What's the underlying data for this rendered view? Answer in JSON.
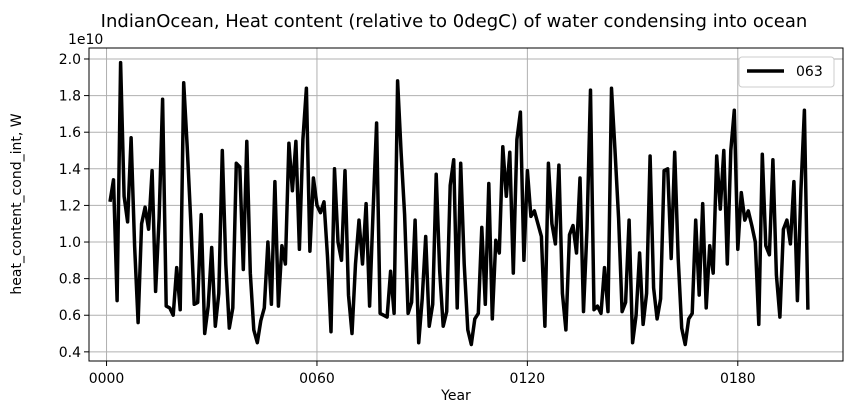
{
  "chart_data": {
    "type": "line",
    "title": "IndianOcean, Heat content (relative to 0degC) of water condensing into ocean",
    "xlabel": "Year",
    "ylabel": "heat_content_cond_int, W",
    "y_offset_label": "1e10",
    "y_scale": 10000000000,
    "xlim": [
      -5,
      210
    ],
    "ylim": [
      0.35,
      2.06
    ],
    "xticks": [
      0,
      60,
      120,
      180
    ],
    "xtick_labels": [
      "0000",
      "0060",
      "0120",
      "0180"
    ],
    "yticks": [
      0.4,
      0.6,
      0.8,
      1.0,
      1.2,
      1.4,
      1.6,
      1.8,
      2.0
    ],
    "ytick_labels": [
      "0.4",
      "0.6",
      "0.8",
      "1.0",
      "1.2",
      "1.4",
      "1.6",
      "1.8",
      "2.0"
    ],
    "grid": true,
    "legend_position": "top-right",
    "series": [
      {
        "name": "063",
        "color": "#000000",
        "x": [
          1,
          2,
          3,
          4,
          5,
          6,
          7,
          8,
          9,
          10,
          11,
          12,
          13,
          14,
          15,
          16,
          17,
          18,
          19,
          20,
          21,
          22,
          23,
          24,
          25,
          26,
          27,
          28,
          29,
          30,
          31,
          32,
          33,
          34,
          35,
          36,
          37,
          38,
          39,
          40,
          41,
          42,
          43,
          44,
          45,
          46,
          47,
          48,
          49,
          50,
          51,
          52,
          53,
          54,
          55,
          56,
          57,
          58,
          59,
          60,
          61,
          62,
          63,
          64,
          65,
          66,
          67,
          68,
          69,
          70,
          71,
          72,
          73,
          74,
          75,
          76,
          77,
          78,
          79,
          80,
          81,
          82,
          83,
          84,
          85,
          86,
          87,
          88,
          89,
          90,
          91,
          92,
          93,
          94,
          95,
          96,
          97,
          98,
          99,
          100,
          101,
          102,
          103,
          104,
          105,
          106,
          107,
          108,
          109,
          110,
          111,
          112,
          113,
          114,
          115,
          116,
          117,
          118,
          119,
          120,
          121,
          122,
          123,
          124,
          125,
          126,
          127,
          128,
          129,
          130,
          131,
          132,
          133,
          134,
          135,
          136,
          137,
          138,
          139,
          140,
          141,
          142,
          143,
          144,
          145,
          146,
          147,
          148,
          149,
          150,
          151,
          152,
          153,
          154,
          155,
          156,
          157,
          158,
          159,
          160,
          161,
          162,
          163,
          164,
          165,
          166,
          167,
          168,
          169,
          170,
          171,
          172,
          173,
          174,
          175,
          176,
          177,
          178,
          179,
          180,
          181,
          182,
          183,
          184,
          185,
          186,
          187,
          188,
          189,
          190,
          191,
          192,
          193,
          194,
          195,
          196,
          197,
          198,
          199,
          200
        ],
        "values": [
          1.22,
          1.34,
          0.68,
          1.98,
          1.25,
          1.11,
          1.57,
          0.98,
          0.56,
          1.1,
          1.19,
          1.07,
          1.39,
          0.73,
          1.13,
          1.78,
          0.65,
          0.64,
          0.6,
          0.86,
          0.63,
          1.87,
          1.52,
          1.12,
          0.66,
          0.67,
          1.15,
          0.5,
          0.65,
          0.97,
          0.54,
          0.72,
          1.5,
          0.88,
          0.53,
          0.64,
          1.43,
          1.41,
          0.85,
          1.55,
          0.83,
          0.52,
          0.45,
          0.57,
          0.64,
          1.0,
          0.66,
          1.33,
          0.65,
          0.98,
          0.88,
          1.54,
          1.28,
          1.55,
          0.96,
          1.56,
          1.84,
          0.95,
          1.35,
          1.2,
          1.16,
          1.22,
          0.92,
          0.51,
          1.4,
          1.0,
          0.9,
          1.39,
          0.71,
          0.5,
          0.88,
          1.12,
          0.88,
          1.21,
          0.65,
          1.17,
          1.65,
          0.61,
          0.6,
          0.59,
          0.84,
          0.61,
          1.88,
          1.49,
          1.15,
          0.61,
          0.67,
          1.12,
          0.45,
          0.69,
          1.03,
          0.54,
          0.66,
          1.37,
          0.84,
          0.54,
          0.62,
          1.31,
          1.45,
          0.64,
          1.43,
          0.88,
          0.52,
          0.44,
          0.58,
          0.61,
          1.08,
          0.66,
          1.32,
          0.58,
          1.01,
          0.94,
          1.52,
          1.25,
          1.49,
          0.83,
          1.56,
          1.71,
          0.9,
          1.39,
          1.14,
          1.17,
          1.1,
          1.03,
          0.54,
          1.43,
          1.1,
          0.99,
          1.42,
          0.72,
          0.52,
          1.04,
          1.09,
          0.94,
          1.35,
          0.62,
          1.07,
          1.83,
          0.63,
          0.65,
          0.61,
          0.86,
          0.62,
          1.84,
          1.5,
          1.13,
          0.62,
          0.67,
          1.12,
          0.45,
          0.6,
          0.94,
          0.55,
          0.72,
          1.47,
          0.75,
          0.58,
          0.69,
          1.39,
          1.4,
          0.91,
          1.49,
          0.91,
          0.53,
          0.44,
          0.58,
          0.61,
          1.12,
          0.71,
          1.21,
          0.64,
          0.98,
          0.83,
          1.47,
          1.18,
          1.5,
          0.88,
          1.5,
          1.72,
          0.96,
          1.27,
          1.12,
          1.17,
          1.09,
          1.0,
          0.55,
          1.48,
          0.98,
          0.93,
          1.45,
          0.82,
          0.59,
          1.07,
          1.12,
          0.99,
          1.33,
          0.68,
          1.28,
          1.72,
          0.63
        ]
      }
    ]
  }
}
